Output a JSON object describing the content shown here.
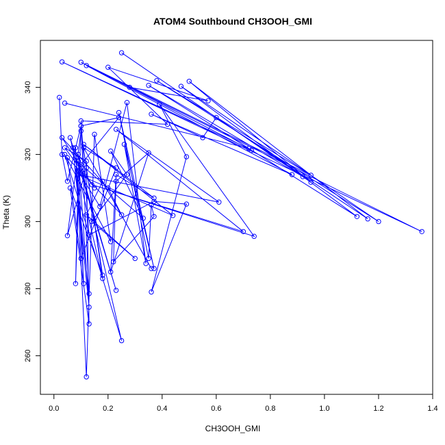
{
  "chart_data": {
    "type": "line",
    "title": "ATOM4 Southbound CH3OOH_GMI",
    "xlabel": "CH3OOH_GMI",
    "ylabel": "Theta (K)",
    "xlim": [
      -0.05,
      1.4
    ],
    "ylim": [
      248.5,
      354
    ],
    "xticks": [
      0.0,
      0.2,
      0.4,
      0.6,
      0.8,
      1.0,
      1.2,
      1.4
    ],
    "xtick_labels": [
      "0.0",
      "0.2",
      "0.4",
      "0.6",
      "0.8",
      "1.0",
      "1.2",
      "1.4"
    ],
    "yticks": [
      260,
      280,
      300,
      320,
      340
    ],
    "ytick_labels": [
      "260",
      "280",
      "300",
      "320",
      "340"
    ],
    "grid": false,
    "series": [
      {
        "color": "#0000ff",
        "marker": "open-circle",
        "points": [
          [
            0.02,
            337.0
          ],
          [
            0.03,
            320.0
          ],
          [
            0.05,
            312.0
          ],
          [
            0.1,
            328.5
          ],
          [
            0.24,
            331.0
          ],
          [
            0.1,
            317.0
          ],
          [
            0.33,
            301.0
          ],
          [
            0.21,
            321.0
          ],
          [
            0.27,
            314.0
          ],
          [
            0.14,
            300.0
          ],
          [
            0.3,
            289.0
          ],
          [
            0.12,
            302.0
          ],
          [
            0.18,
            312.0
          ],
          [
            0.36,
            286.0
          ],
          [
            0.11,
            322.0
          ],
          [
            0.23,
            316.0
          ],
          [
            0.1,
            289.0
          ],
          [
            0.05,
            319.0
          ],
          [
            0.25,
            302.0
          ],
          [
            0.2,
            310.0
          ],
          [
            0.03,
            325.0
          ],
          [
            0.15,
            310.0
          ],
          [
            0.04,
            322.0
          ],
          [
            0.12,
            318.0
          ],
          [
            0.13,
            269.5
          ],
          [
            0.06,
            310.0
          ],
          [
            0.18,
            284.0
          ],
          [
            0.12,
            316.0
          ],
          [
            0.05,
            295.8
          ],
          [
            0.1,
            327.0
          ],
          [
            0.18,
            283.0
          ],
          [
            0.06,
            325.0
          ],
          [
            0.23,
            279.5
          ],
          [
            0.09,
            318.0
          ],
          [
            0.11,
            281.5
          ],
          [
            0.08,
            322.0
          ],
          [
            0.12,
            253.7
          ],
          [
            0.15,
            326.0
          ],
          [
            0.21,
            294.0
          ],
          [
            0.04,
            320.0
          ],
          [
            0.25,
            264.5
          ],
          [
            0.09,
            320.0
          ],
          [
            0.13,
            274.5
          ],
          [
            0.07,
            322.0
          ],
          [
            0.13,
            278.5
          ],
          [
            0.1,
            328.5
          ],
          [
            0.08,
            281.5
          ],
          [
            0.09,
            315.0
          ],
          [
            0.17,
            304.5
          ],
          [
            0.27,
            335.5
          ],
          [
            0.34,
            287.5
          ],
          [
            0.26,
            323.0
          ],
          [
            0.37,
            286.0
          ],
          [
            0.24,
            332.5
          ],
          [
            0.35,
            289.0
          ],
          [
            0.36,
            305.0
          ],
          [
            0.37,
            301.5
          ],
          [
            0.22,
            288.0
          ],
          [
            0.23,
            312.0
          ],
          [
            0.35,
            320.5
          ],
          [
            0.21,
            285.0
          ],
          [
            0.23,
            314.0
          ],
          [
            0.37,
            307.0
          ],
          [
            0.11,
            323.0
          ],
          [
            0.44,
            301.8
          ],
          [
            0.09,
            314.0
          ],
          [
            0.61,
            305.8
          ],
          [
            0.23,
            327.5
          ],
          [
            0.7,
            297.0
          ],
          [
            0.14,
            311.0
          ],
          [
            0.74,
            295.6
          ],
          [
            0.39,
            335.0
          ],
          [
            0.49,
            319.3
          ],
          [
            0.36,
            279.0
          ],
          [
            0.49,
            305.2
          ],
          [
            0.37,
            306.0
          ],
          [
            0.13,
            296.0
          ],
          [
            0.1,
            330.0
          ],
          [
            0.42,
            329.0
          ],
          [
            0.2,
            346.0
          ],
          [
            0.57,
            336.0
          ],
          [
            0.28,
            340.0
          ],
          [
            0.73,
            321.2
          ],
          [
            0.1,
            347.5
          ],
          [
            0.95,
            313.8
          ],
          [
            0.38,
            342.0
          ],
          [
            1.2,
            300.0
          ],
          [
            0.47,
            340.3
          ],
          [
            1.12,
            301.5
          ],
          [
            0.35,
            340.6
          ],
          [
            0.92,
            313.4
          ],
          [
            0.25,
            350.3
          ],
          [
            0.95,
            311.7
          ],
          [
            0.5,
            341.8
          ],
          [
            1.16,
            300.8
          ],
          [
            0.6,
            331.0
          ],
          [
            0.55,
            325.0
          ],
          [
            0.36,
            332.0
          ],
          [
            0.88,
            314.0
          ],
          [
            0.12,
            346.5
          ],
          [
            1.36,
            297.0
          ],
          [
            0.03,
            347.6
          ],
          [
            0.72,
            321.8
          ],
          [
            0.04,
            335.3
          ]
        ]
      }
    ]
  }
}
